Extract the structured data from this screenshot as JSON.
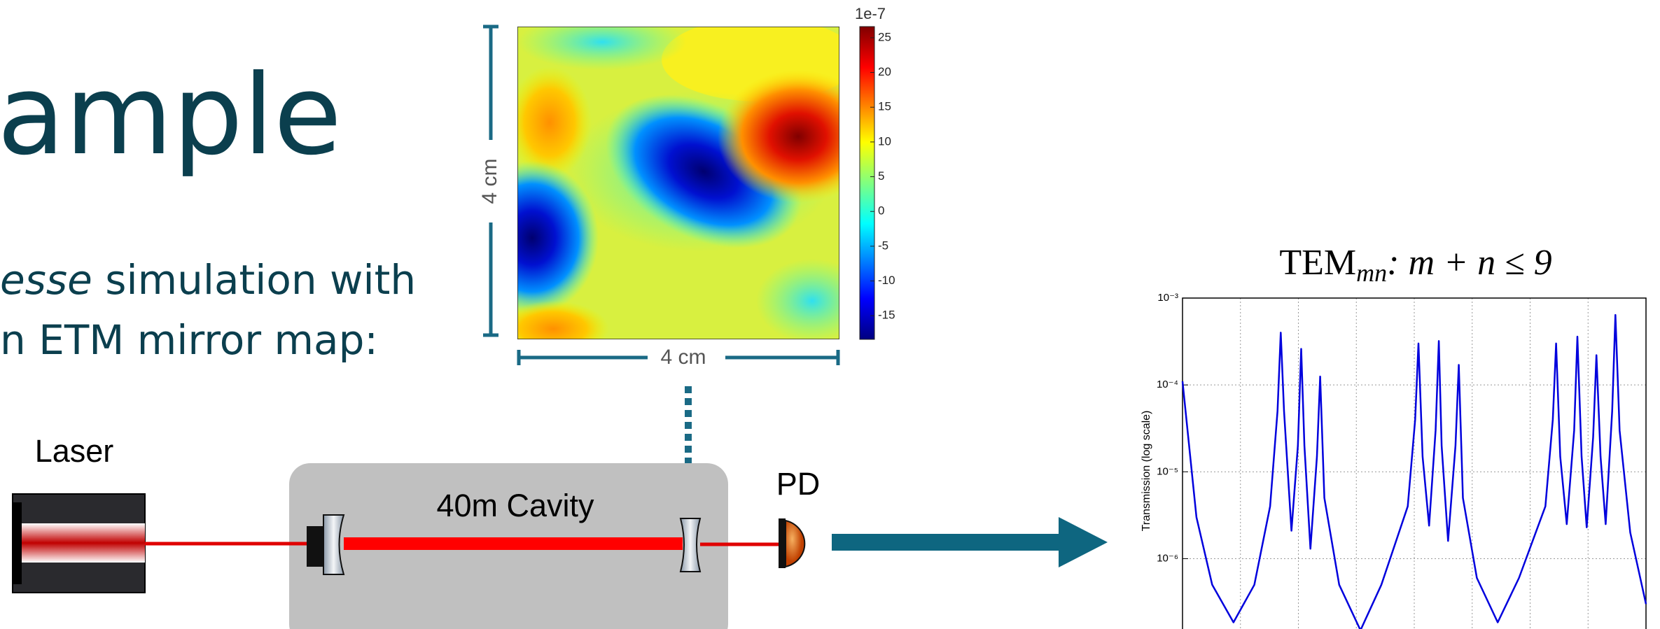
{
  "slide": {
    "title": "ample",
    "body": {
      "line1_italic": "esse",
      "line1_rest": " simulation with",
      "line2": "n ETM mirror map:"
    }
  },
  "mirror_map": {
    "width_label": "4 cm",
    "height_label": "4 cm",
    "colorbar": {
      "exponent_label": "1e-7",
      "clim": [
        -18.4,
        26.6
      ],
      "ticks": [
        25,
        20,
        15,
        10,
        5,
        0,
        -5,
        -10,
        -15
      ]
    }
  },
  "setup": {
    "laser_label": "Laser",
    "cavity_label": "40m Cavity",
    "detector_label": "PD"
  },
  "chart_data": {
    "type": "line",
    "title": {
      "base": "TEM",
      "subscript": "mn",
      "rest": ": m + n ≤ 9"
    },
    "y_label": "Transmission (log scale)",
    "y_log": true,
    "grid": true,
    "xlim": [
      0,
      100
    ],
    "xticks": [
      12.5,
      25,
      37.5,
      50,
      62.5,
      75,
      87.5
    ],
    "ylim": [
      1.55e-07,
      0.001
    ],
    "yticks": [
      {
        "value": 0.001,
        "label": "10⁻³"
      },
      {
        "value": 0.0001,
        "label": "10⁻⁴"
      },
      {
        "value": 1e-05,
        "label": "10⁻⁵"
      },
      {
        "value": 1e-06,
        "label": "10⁻⁶"
      }
    ],
    "series": [
      {
        "color": "#0000dd",
        "x": [
          0,
          3,
          6.4,
          11,
          15.5,
          18.9,
          20.5,
          21.2,
          21.9,
          23.5,
          24.9,
          25.6,
          26.3,
          27.6,
          29,
          29.7,
          30.6,
          33.8,
          38.4,
          42.9,
          48.6,
          50.2,
          50.9,
          51.8,
          53.2,
          54.6,
          55.3,
          55.9,
          57.3,
          58.9,
          59.6,
          60.5,
          63.5,
          68,
          72.6,
          78.3,
          79.9,
          80.6,
          81.5,
          82.9,
          84.5,
          85.2,
          86.1,
          87.2,
          88.6,
          89.3,
          90.2,
          91.3,
          92.7,
          93.4,
          94.3,
          96.6,
          100
        ],
        "values": [
          0.00011,
          3e-06,
          5e-07,
          1.85e-07,
          5e-07,
          4e-06,
          5e-05,
          0.0004,
          5e-05,
          2.1e-06,
          2e-05,
          0.00026,
          2e-05,
          1.3e-06,
          1.5e-05,
          0.000125,
          5e-06,
          5e-07,
          1.5e-07,
          5e-07,
          4e-06,
          4e-05,
          0.0003,
          1.5e-05,
          2.4e-06,
          3e-05,
          0.00032,
          2e-05,
          1.6e-06,
          2e-05,
          0.00017,
          5e-06,
          6e-07,
          1.85e-07,
          6e-07,
          4e-06,
          4e-05,
          0.0003,
          1.5e-05,
          2.5e-06,
          3e-05,
          0.00036,
          1.5e-05,
          2.3e-06,
          2.5e-05,
          0.00022,
          1.5e-05,
          2.5e-06,
          5e-05,
          0.00064,
          3e-05,
          2e-06,
          3e-07
        ]
      }
    ]
  }
}
